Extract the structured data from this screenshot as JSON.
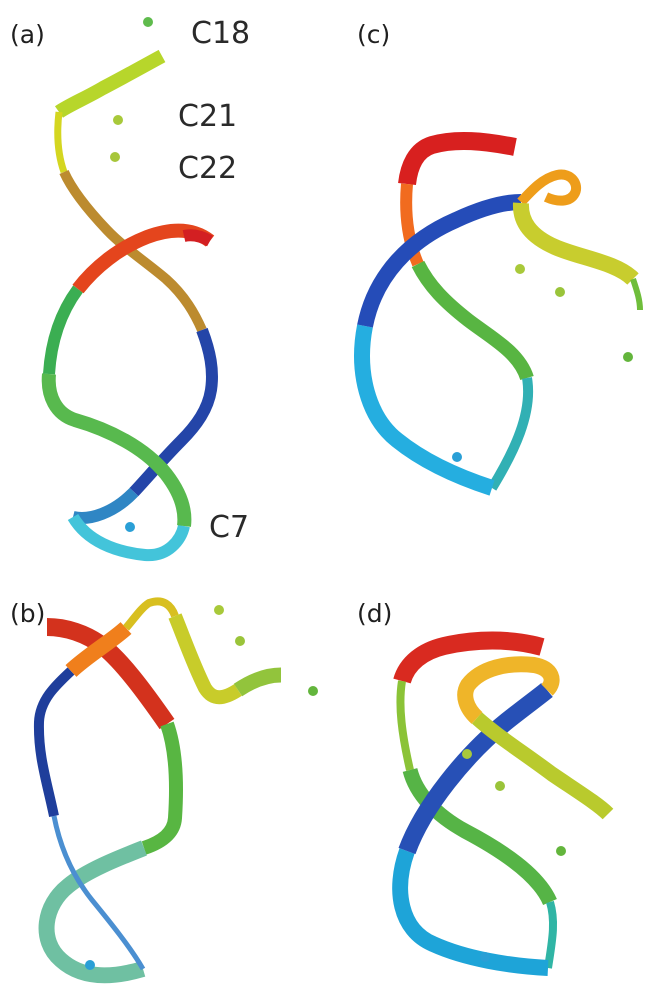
{
  "panels": [
    {
      "id": "a",
      "label": "(a)"
    },
    {
      "id": "b",
      "label": "(b)"
    },
    {
      "id": "c",
      "label": "(c)"
    },
    {
      "id": "d",
      "label": "(d)"
    }
  ],
  "atom_labels": {
    "c18": "C18",
    "c21": "C21",
    "c22": "C22",
    "c7": "C7"
  },
  "colors": {
    "red": "#d81f1f",
    "orange_red": "#e8501a",
    "orange": "#e8a020",
    "yellow": "#d7d21e",
    "yellow_green": "#a9c93a",
    "green": "#4aac4a",
    "cyan": "#3bbfd3",
    "teal": "#6abca8",
    "blue": "#2d52b8",
    "navy": "#23368f",
    "marker_green": "#63b53c",
    "marker_yellow_green": "#9bc83a",
    "marker_cyan": "#2a9fd6"
  }
}
